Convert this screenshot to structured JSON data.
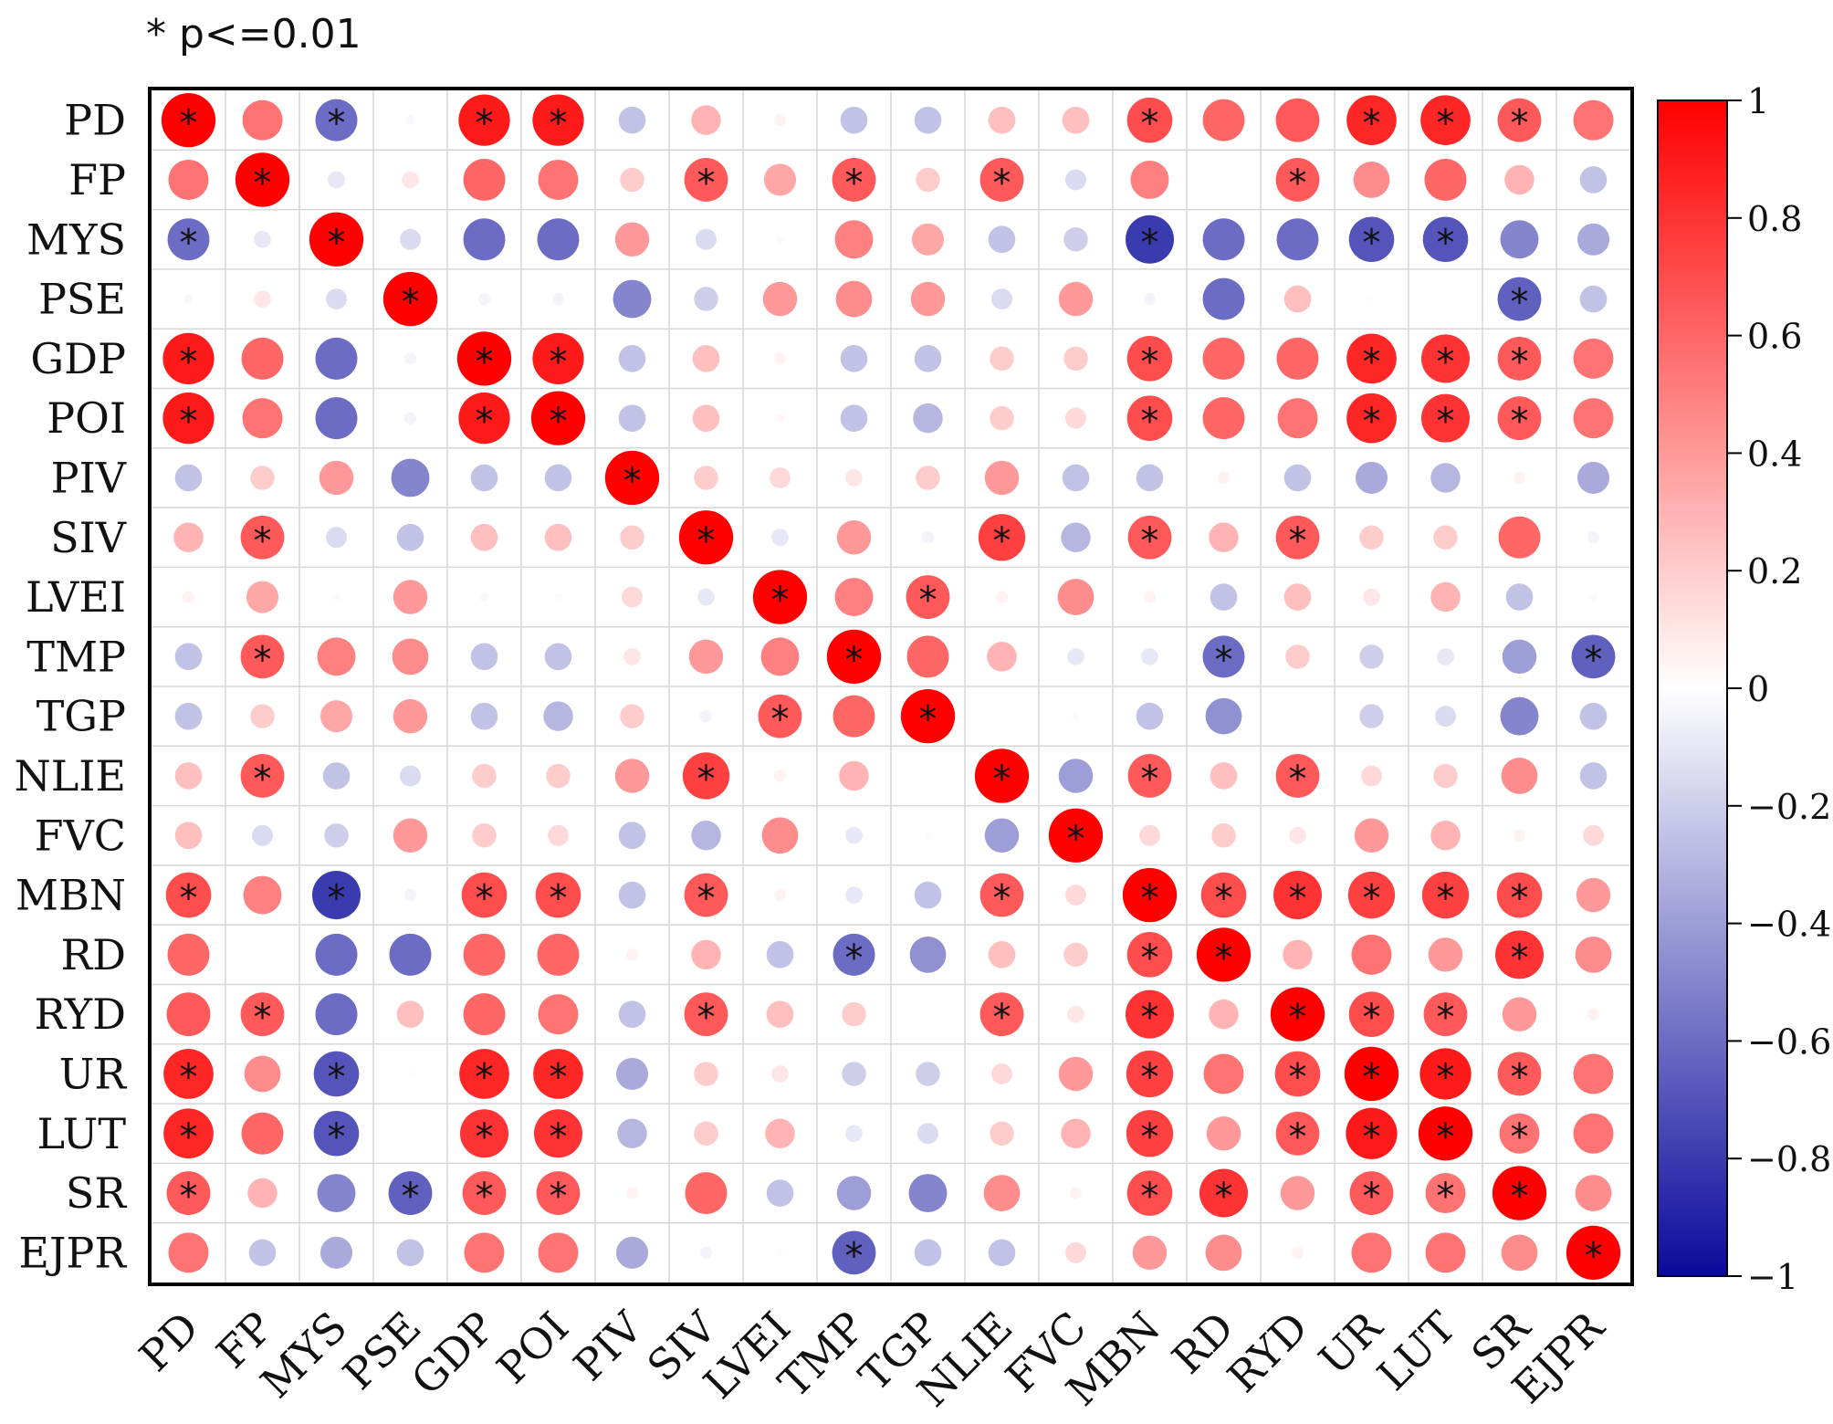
{
  "chart_data": {
    "type": "heatmap",
    "subtype": "correlation-circle-matrix",
    "significance_note": "* p<=0.01",
    "significance_marker": "*",
    "variables": [
      "PD",
      "FP",
      "MYS",
      "PSE",
      "GDP",
      "POI",
      "PIV",
      "SIV",
      "LVEI",
      "TMP",
      "TGP",
      "NLIE",
      "FVC",
      "MBN",
      "RD",
      "RYD",
      "UR",
      "LUT",
      "SR",
      "EJPR"
    ],
    "colorbar": {
      "min": -1,
      "max": 1,
      "ticks": [
        1,
        0.8,
        0.6,
        0.4,
        0.2,
        0,
        -0.2,
        -0.4,
        -0.6,
        -0.8,
        -1
      ],
      "tick_labels": [
        "1",
        "0.8",
        "0.6",
        "0.4",
        "0.2",
        "0",
        "−0.2",
        "−0.4",
        "−0.6",
        "−0.8",
        "−1"
      ],
      "colors": {
        "negative": "#0a0a9c",
        "zero": "#ffffff",
        "positive": "#ff0000"
      }
    },
    "values": [
      [
        1.0,
        0.55,
        -0.6,
        -0.03,
        0.9,
        0.9,
        -0.25,
        0.3,
        0.05,
        -0.25,
        -0.25,
        0.25,
        0.25,
        0.7,
        0.6,
        0.65,
        0.85,
        0.85,
        0.65,
        0.55
      ],
      [
        0.55,
        1.0,
        -0.1,
        0.1,
        0.6,
        0.55,
        0.2,
        0.65,
        0.35,
        0.65,
        0.2,
        0.65,
        -0.15,
        0.5,
        0.0,
        0.65,
        0.45,
        0.6,
        0.3,
        -0.25
      ],
      [
        -0.6,
        -0.1,
        1.0,
        -0.15,
        -0.6,
        -0.6,
        0.4,
        -0.15,
        0.02,
        0.5,
        0.35,
        -0.25,
        -0.2,
        -0.8,
        -0.6,
        -0.6,
        -0.7,
        -0.7,
        -0.5,
        -0.35
      ],
      [
        -0.03,
        0.1,
        -0.15,
        1.0,
        -0.05,
        -0.05,
        -0.5,
        -0.2,
        0.4,
        0.45,
        0.4,
        -0.15,
        0.4,
        -0.05,
        -0.6,
        0.25,
        0.01,
        0.0,
        -0.65,
        -0.25
      ],
      [
        0.9,
        0.6,
        -0.6,
        -0.05,
        1.0,
        0.9,
        -0.25,
        0.25,
        0.05,
        -0.25,
        -0.25,
        0.2,
        0.2,
        0.7,
        0.6,
        0.6,
        0.85,
        0.8,
        0.65,
        0.55
      ],
      [
        0.9,
        0.55,
        -0.6,
        -0.05,
        0.9,
        1.0,
        -0.25,
        0.25,
        0.03,
        -0.25,
        -0.3,
        0.2,
        0.15,
        0.7,
        0.6,
        0.55,
        0.85,
        0.8,
        0.65,
        0.55
      ],
      [
        -0.25,
        0.2,
        0.4,
        -0.5,
        -0.25,
        -0.25,
        1.0,
        0.2,
        0.15,
        0.1,
        0.2,
        0.4,
        -0.25,
        -0.25,
        0.05,
        -0.25,
        -0.35,
        -0.3,
        0.05,
        -0.35
      ],
      [
        0.3,
        0.65,
        -0.15,
        -0.25,
        0.25,
        0.25,
        0.2,
        1.0,
        -0.1,
        0.4,
        -0.05,
        0.75,
        -0.3,
        0.65,
        0.3,
        0.65,
        0.2,
        0.2,
        0.6,
        -0.05
      ],
      [
        0.05,
        0.35,
        0.02,
        0.4,
        0.03,
        0.02,
        0.15,
        -0.1,
        1.0,
        0.5,
        0.65,
        0.05,
        0.45,
        0.05,
        -0.25,
        0.25,
        0.1,
        0.3,
        -0.25,
        0.02
      ],
      [
        -0.25,
        0.65,
        0.5,
        0.45,
        -0.25,
        -0.25,
        0.1,
        0.4,
        0.5,
        1.0,
        0.6,
        0.3,
        -0.1,
        -0.1,
        -0.6,
        0.2,
        -0.2,
        -0.1,
        -0.4,
        -0.65
      ],
      [
        -0.25,
        0.2,
        0.35,
        0.4,
        -0.25,
        -0.3,
        0.2,
        -0.05,
        0.65,
        0.6,
        1.0,
        0.0,
        0.02,
        -0.25,
        -0.45,
        0.0,
        -0.2,
        -0.15,
        -0.5,
        -0.25
      ],
      [
        0.25,
        0.65,
        -0.25,
        -0.15,
        0.2,
        0.2,
        0.4,
        0.75,
        0.05,
        0.3,
        0.0,
        1.0,
        -0.4,
        0.65,
        0.25,
        0.65,
        0.15,
        0.2,
        0.45,
        -0.25
      ],
      [
        0.25,
        -0.15,
        -0.2,
        0.4,
        0.2,
        0.15,
        -0.25,
        -0.3,
        0.45,
        -0.1,
        0.02,
        -0.4,
        1.0,
        0.15,
        0.2,
        0.1,
        0.4,
        0.3,
        0.05,
        0.15
      ],
      [
        0.7,
        0.5,
        -0.8,
        -0.05,
        0.7,
        0.7,
        -0.25,
        0.65,
        0.05,
        -0.1,
        -0.25,
        0.65,
        0.15,
        1.0,
        0.7,
        0.8,
        0.75,
        0.75,
        0.7,
        0.4
      ],
      [
        0.6,
        0.0,
        -0.6,
        -0.6,
        0.6,
        0.6,
        0.05,
        0.3,
        -0.25,
        -0.6,
        -0.45,
        0.25,
        0.2,
        0.7,
        1.0,
        0.3,
        0.55,
        0.4,
        0.8,
        0.45
      ],
      [
        0.65,
        0.65,
        -0.6,
        0.25,
        0.6,
        0.55,
        -0.25,
        0.65,
        0.25,
        0.2,
        0.0,
        0.65,
        0.1,
        0.8,
        0.3,
        1.0,
        0.7,
        0.65,
        0.4,
        0.05
      ],
      [
        0.85,
        0.45,
        -0.7,
        0.01,
        0.85,
        0.85,
        -0.35,
        0.2,
        0.1,
        -0.2,
        -0.2,
        0.15,
        0.4,
        0.75,
        0.55,
        0.7,
        1.0,
        0.9,
        0.65,
        0.55
      ],
      [
        0.85,
        0.6,
        -0.7,
        0.0,
        0.8,
        0.8,
        -0.3,
        0.2,
        0.3,
        -0.1,
        -0.15,
        0.2,
        0.3,
        0.75,
        0.4,
        0.65,
        0.9,
        1.0,
        0.55,
        0.55
      ],
      [
        0.65,
        0.3,
        -0.5,
        -0.65,
        0.65,
        0.65,
        0.05,
        0.6,
        -0.25,
        -0.4,
        -0.5,
        0.45,
        0.05,
        0.7,
        0.8,
        0.4,
        0.65,
        0.55,
        1.0,
        0.45
      ],
      [
        0.55,
        -0.25,
        -0.35,
        -0.25,
        0.55,
        0.55,
        -0.35,
        -0.05,
        0.02,
        -0.65,
        -0.25,
        -0.25,
        0.15,
        0.4,
        0.45,
        0.05,
        0.55,
        0.55,
        0.45,
        1.0
      ]
    ],
    "significant": [
      [
        1,
        0,
        1,
        0,
        1,
        1,
        0,
        0,
        0,
        0,
        0,
        0,
        0,
        1,
        0,
        0,
        1,
        1,
        1,
        0
      ],
      [
        0,
        1,
        0,
        0,
        0,
        0,
        0,
        1,
        0,
        1,
        0,
        1,
        0,
        0,
        0,
        1,
        0,
        0,
        0,
        0
      ],
      [
        1,
        0,
        1,
        0,
        0,
        0,
        0,
        0,
        0,
        0,
        0,
        0,
        0,
        1,
        0,
        0,
        1,
        1,
        0,
        0
      ],
      [
        0,
        0,
        0,
        1,
        0,
        0,
        0,
        0,
        0,
        0,
        0,
        0,
        0,
        0,
        0,
        0,
        0,
        0,
        1,
        0
      ],
      [
        1,
        0,
        0,
        0,
        1,
        1,
        0,
        0,
        0,
        0,
        0,
        0,
        0,
        1,
        0,
        0,
        1,
        1,
        1,
        0
      ],
      [
        1,
        0,
        0,
        0,
        1,
        1,
        0,
        0,
        0,
        0,
        0,
        0,
        0,
        1,
        0,
        0,
        1,
        1,
        1,
        0
      ],
      [
        0,
        0,
        0,
        0,
        0,
        0,
        1,
        0,
        0,
        0,
        0,
        0,
        0,
        0,
        0,
        0,
        0,
        0,
        0,
        0
      ],
      [
        0,
        1,
        0,
        0,
        0,
        0,
        0,
        1,
        0,
        0,
        0,
        1,
        0,
        1,
        0,
        1,
        0,
        0,
        0,
        0
      ],
      [
        0,
        0,
        0,
        0,
        0,
        0,
        0,
        0,
        1,
        0,
        1,
        0,
        0,
        0,
        0,
        0,
        0,
        0,
        0,
        0
      ],
      [
        0,
        1,
        0,
        0,
        0,
        0,
        0,
        0,
        0,
        1,
        0,
        0,
        0,
        0,
        1,
        0,
        0,
        0,
        0,
        1
      ],
      [
        0,
        0,
        0,
        0,
        0,
        0,
        0,
        0,
        1,
        0,
        1,
        0,
        0,
        0,
        0,
        0,
        0,
        0,
        0,
        0
      ],
      [
        0,
        1,
        0,
        0,
        0,
        0,
        0,
        1,
        0,
        0,
        0,
        1,
        0,
        1,
        0,
        1,
        0,
        0,
        0,
        0
      ],
      [
        0,
        0,
        0,
        0,
        0,
        0,
        0,
        0,
        0,
        0,
        0,
        0,
        1,
        0,
        0,
        0,
        0,
        0,
        0,
        0
      ],
      [
        1,
        0,
        1,
        0,
        1,
        1,
        0,
        1,
        0,
        0,
        0,
        1,
        0,
        1,
        1,
        1,
        1,
        1,
        1,
        0
      ],
      [
        0,
        0,
        0,
        0,
        0,
        0,
        0,
        0,
        0,
        1,
        0,
        0,
        0,
        1,
        1,
        0,
        0,
        0,
        1,
        0
      ],
      [
        0,
        1,
        0,
        0,
        0,
        0,
        0,
        1,
        0,
        0,
        0,
        1,
        0,
        1,
        0,
        1,
        1,
        1,
        0,
        0
      ],
      [
        1,
        0,
        1,
        0,
        1,
        1,
        0,
        0,
        0,
        0,
        0,
        0,
        0,
        1,
        0,
        1,
        1,
        1,
        1,
        0
      ],
      [
        1,
        0,
        1,
        0,
        1,
        1,
        0,
        0,
        0,
        0,
        0,
        0,
        0,
        1,
        0,
        1,
        1,
        1,
        1,
        0
      ],
      [
        1,
        0,
        0,
        1,
        1,
        1,
        0,
        0,
        0,
        0,
        0,
        0,
        0,
        1,
        1,
        0,
        1,
        1,
        1,
        0
      ],
      [
        0,
        0,
        0,
        0,
        0,
        0,
        0,
        0,
        0,
        1,
        0,
        0,
        0,
        0,
        0,
        0,
        0,
        0,
        0,
        1
      ]
    ]
  }
}
